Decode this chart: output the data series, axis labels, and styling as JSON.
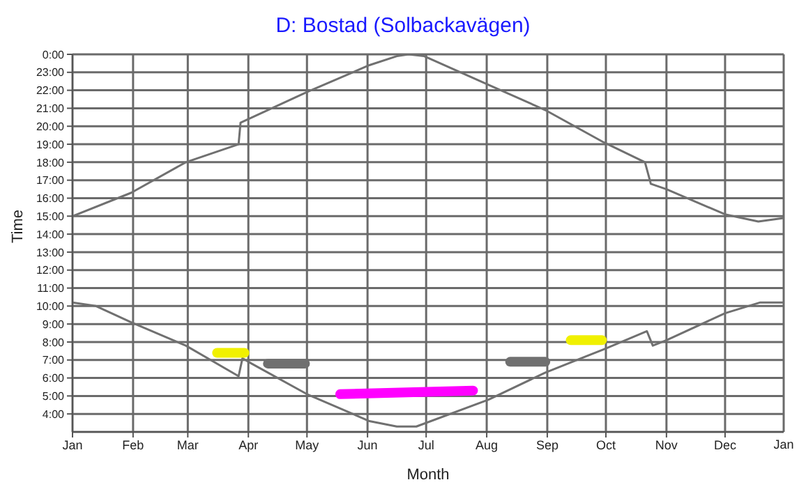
{
  "chart_data": {
    "type": "line",
    "title": "D: Bostad (Solbackavägen)",
    "xlabel": "Month",
    "ylabel": "Time",
    "xlim": [
      "--01-01",
      "--12-31"
    ],
    "annotations": [
      "Jan"
    ],
    "xticks": [
      {
        "value": "--01-01",
        "label": "Jan"
      },
      {
        "value": "--02-01",
        "label": "Feb"
      },
      {
        "value": "--03-01",
        "label": "Mar"
      },
      {
        "value": "--04-01",
        "label": "Apr"
      },
      {
        "value": "--05-01",
        "label": "May"
      },
      {
        "value": "--06-01",
        "label": "Jun"
      },
      {
        "value": "--07-01",
        "label": "Jul"
      },
      {
        "value": "--08-01",
        "label": "Aug"
      },
      {
        "value": "--09-01",
        "label": "Sep"
      },
      {
        "value": "--10-01",
        "label": "Oct"
      },
      {
        "value": "--11-01",
        "label": "Nov"
      },
      {
        "value": "--12-01",
        "label": "Dec"
      }
    ],
    "ylim": [
      3,
      24
    ],
    "yticks": [
      {
        "value": 4,
        "label": "4:00"
      },
      {
        "value": 5,
        "label": "5:00"
      },
      {
        "value": 6,
        "label": "6:00"
      },
      {
        "value": 7,
        "label": "7:00"
      },
      {
        "value": 8,
        "label": "8:00"
      },
      {
        "value": 9,
        "label": "9:00"
      },
      {
        "value": 10,
        "label": "10:00"
      },
      {
        "value": 11,
        "label": "11:00"
      },
      {
        "value": 12,
        "label": "12:00"
      },
      {
        "value": 13,
        "label": "13:00"
      },
      {
        "value": 14,
        "label": "14:00"
      },
      {
        "value": 15,
        "label": "15:00"
      },
      {
        "value": 16,
        "label": "16:00"
      },
      {
        "value": 17,
        "label": "17:00"
      },
      {
        "value": 18,
        "label": "18:00"
      },
      {
        "value": 19,
        "label": "19:00"
      },
      {
        "value": 20,
        "label": "20:00"
      },
      {
        "value": 21,
        "label": "21:00"
      },
      {
        "value": 22,
        "label": "22:00"
      },
      {
        "value": 23,
        "label": "23:00"
      },
      {
        "value": 24,
        "label": "0:00"
      }
    ],
    "grid": true,
    "marker": "none",
    "series": [
      {
        "color": "#707070",
        "x": [
          "--01-01",
          "--01-31",
          "--02-28",
          "--03-27",
          "--03-28",
          "--05-01",
          "--06-02",
          "--06-16",
          "--06-22",
          "--06-30",
          "--08-02",
          "--08-31",
          "--09-30",
          "--10-21",
          "--10-24",
          "--11-01",
          "--12-01",
          "--12-18",
          "--12-31"
        ],
        "values": [
          15.0,
          16.3,
          18.0,
          19.0,
          20.2,
          21.9,
          23.4,
          23.9,
          24.0,
          23.9,
          22.3,
          20.9,
          19.1,
          18.0,
          16.8,
          16.5,
          15.1,
          14.7,
          14.9
        ]
      },
      {
        "color": "#707070",
        "x": [
          "--01-01",
          "--01-13",
          "--01-31",
          "--02-28",
          "--03-27",
          "--03-29",
          "--04-01",
          "--05-01",
          "--06-02",
          "--06-16",
          "--06-26",
          "--08-02",
          "--08-31",
          "--09-30",
          "--10-22",
          "--10-25",
          "--11-01",
          "--12-01",
          "--12-19",
          "--12-31"
        ],
        "values": [
          10.2,
          10.0,
          9.1,
          7.8,
          6.1,
          7.1,
          6.9,
          5.1,
          3.6,
          3.3,
          3.3,
          4.8,
          6.3,
          7.6,
          8.6,
          7.8,
          8.1,
          9.6,
          10.2,
          10.2
        ]
      },
      {
        "color": "#f0f000",
        "x": [
          "--03-16",
          "--03-30"
        ],
        "values": [
          7.4,
          7.4
        ]
      },
      {
        "color": "#707070",
        "x": [
          "--04-11",
          "--04-30"
        ],
        "values": [
          6.8,
          6.8
        ]
      },
      {
        "color": "#ff00ff",
        "x": [
          "--05-18",
          "--07-25"
        ],
        "values": [
          5.1,
          5.3
        ]
      },
      {
        "color": "#707070",
        "x": [
          "--08-13",
          "--08-31"
        ],
        "values": [
          6.9,
          6.9
        ]
      },
      {
        "color": "#f0f000",
        "x": [
          "--09-13",
          "--09-29"
        ],
        "values": [
          8.1,
          8.1
        ]
      }
    ]
  }
}
